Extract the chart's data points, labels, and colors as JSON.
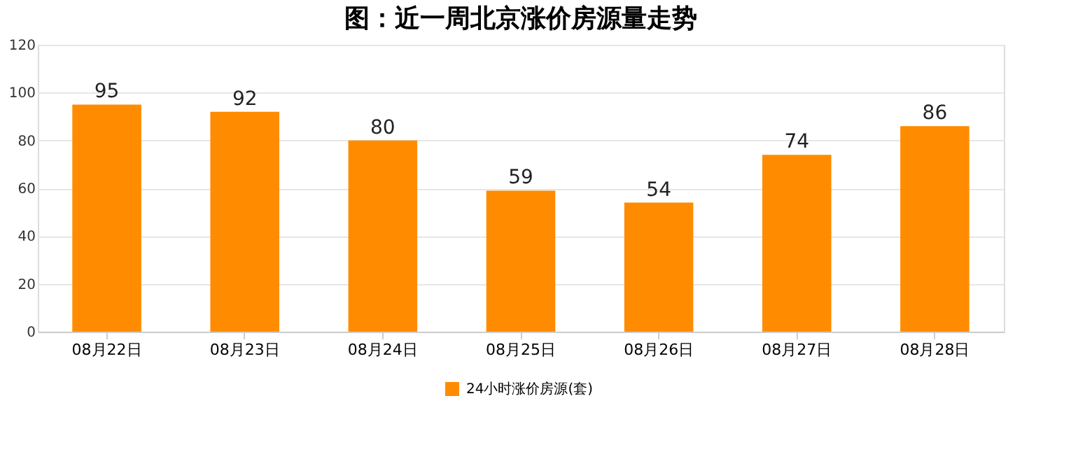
{
  "chart_data": {
    "type": "bar",
    "title": "图：近一周北京涨价房源量走势",
    "categories": [
      "08月22日",
      "08月23日",
      "08月24日",
      "08月25日",
      "08月26日",
      "08月27日",
      "08月28日"
    ],
    "series": [
      {
        "name": "24小时涨价房源(套)",
        "color": "#ff8c00",
        "values": [
          95,
          92,
          80,
          59,
          54,
          74,
          86
        ]
      }
    ],
    "ylim": [
      0,
      120
    ],
    "yticks": [
      0,
      20,
      40,
      60,
      80,
      100,
      120
    ],
    "grid": "y",
    "legend": "bottom",
    "data_labels": true
  }
}
